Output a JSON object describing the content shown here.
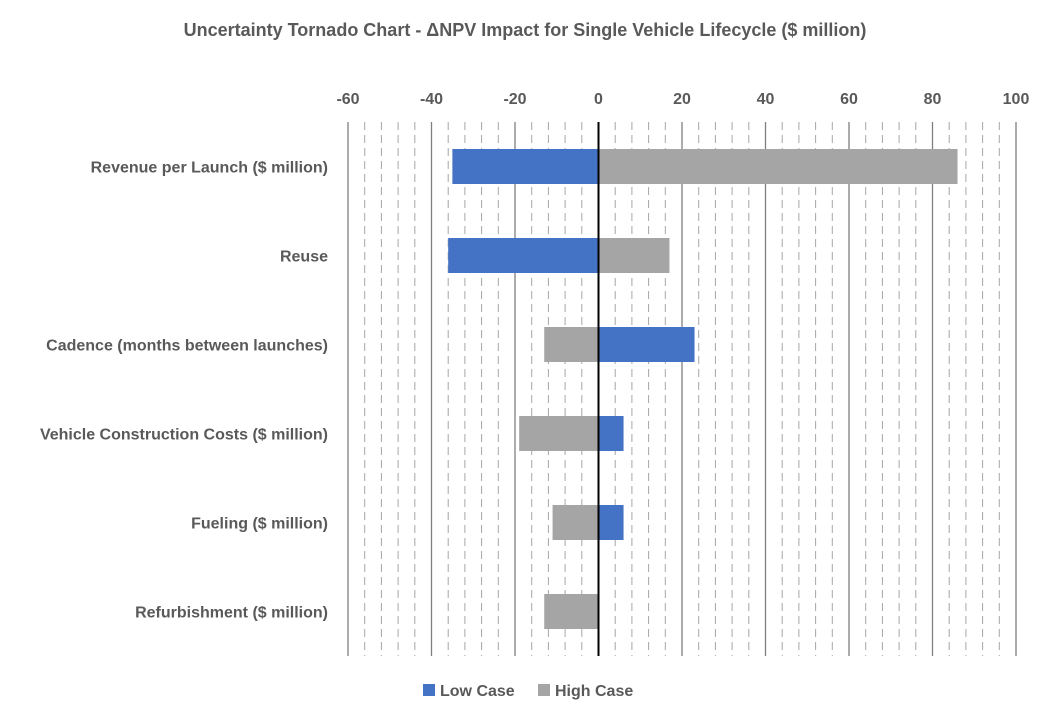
{
  "chart_data": {
    "type": "bar",
    "orientation": "horizontal-tornado",
    "title": "Uncertainty Tornado Chart - ΔNPV Impact for Single Vehicle Lifecycle ($ million)",
    "categories": [
      "Revenue per Launch ($ million)",
      "Reuse",
      "Cadence (months between launches)",
      "Vehicle Construction Costs ($ million)",
      "Fueling ($ million)",
      "Refurbishment ($ million)"
    ],
    "series": [
      {
        "name": "Low Case",
        "color": "#4472C4",
        "values": [
          -35,
          -36,
          23,
          6,
          6,
          0
        ]
      },
      {
        "name": "High Case",
        "color": "#A5A5A5",
        "values": [
          86,
          17,
          -13,
          -19,
          -11,
          -13
        ]
      }
    ],
    "xlim": [
      -60,
      100
    ],
    "xticks": [
      "-60",
      "-40",
      "-20",
      "0",
      "20",
      "40",
      "60",
      "80",
      "100"
    ],
    "grid": true,
    "legend": "bottom"
  }
}
